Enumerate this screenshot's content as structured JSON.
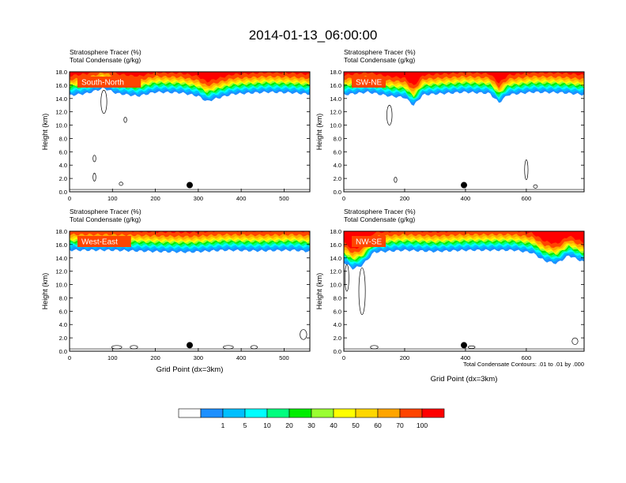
{
  "figure": {
    "title": "2014-01-13_06:00:00",
    "footnote": "Total Condensate Contours: .01 to .01 by .000"
  },
  "colorbar": {
    "colors": [
      "#ffffff",
      "#1e90ff",
      "#00bfff",
      "#00ffff",
      "#00ff7f",
      "#00ee00",
      "#9aff32",
      "#ffff00",
      "#ffd700",
      "#ffa500",
      "#ff4500",
      "#ff0000"
    ],
    "labels": [
      "1",
      "5",
      "10",
      "20",
      "30",
      "40",
      "50",
      "60",
      "70",
      "100"
    ]
  },
  "chart_data": [
    {
      "type": "heatmap",
      "label": "South-North",
      "title_lines": [
        "Stratosphere Tracer   (%)",
        "Total Condensate   (g/kg)"
      ],
      "ylabel": "Height (km)",
      "xlabel": "",
      "xlim": [
        0,
        560
      ],
      "ylim": [
        0,
        18
      ],
      "xticks": [
        0,
        100,
        200,
        300,
        400,
        500
      ],
      "yticks": [
        "0.0",
        "2.0",
        "4.0",
        "6.0",
        "8.0",
        "10.0",
        "12.0",
        "14.0",
        "16.0",
        "18.0"
      ],
      "tropopause_km": [
        [
          0,
          14.1
        ],
        [
          40,
          14.4
        ],
        [
          80,
          15.2
        ],
        [
          110,
          14.4
        ],
        [
          160,
          14.0
        ],
        [
          200,
          14.6
        ],
        [
          260,
          14.5
        ],
        [
          300,
          14.0
        ],
        [
          320,
          13.2
        ],
        [
          340,
          13.6
        ],
        [
          380,
          14.3
        ],
        [
          460,
          14.6
        ],
        [
          520,
          14.5
        ],
        [
          560,
          14.3
        ]
      ],
      "marker": [
        280,
        1.0
      ],
      "condensate_contours": [
        [
          80,
          13.5,
          10,
          3.5
        ],
        [
          130,
          10.8,
          3,
          0.8
        ],
        [
          58,
          5.0,
          3,
          1.0
        ],
        [
          58,
          2.2,
          3,
          1.2
        ],
        [
          120,
          1.2,
          5,
          0.5
        ]
      ]
    },
    {
      "type": "heatmap",
      "label": "SW-NE",
      "title_lines": [
        "Stratosphere Tracer   (%)",
        "Total Condensate   (g/kg)"
      ],
      "ylabel": "Height (km)",
      "xlabel": "",
      "xlim": [
        0,
        790
      ],
      "ylim": [
        0,
        18
      ],
      "xticks": [
        0,
        200,
        400,
        600
      ],
      "yticks": [
        "0.0",
        "2.0",
        "4.0",
        "6.0",
        "8.0",
        "10.0",
        "12.0",
        "14.0",
        "16.0",
        "18.0"
      ],
      "tropopause_km": [
        [
          0,
          14.2
        ],
        [
          80,
          14.6
        ],
        [
          150,
          14.0
        ],
        [
          200,
          13.8
        ],
        [
          230,
          12.6
        ],
        [
          260,
          14.2
        ],
        [
          400,
          14.6
        ],
        [
          480,
          14.4
        ],
        [
          510,
          13.0
        ],
        [
          540,
          14.2
        ],
        [
          620,
          14.6
        ],
        [
          720,
          14.5
        ],
        [
          790,
          14.2
        ]
      ],
      "marker": [
        395,
        1.0
      ],
      "condensate_contours": [
        [
          150,
          11.5,
          12,
          3.0
        ],
        [
          170,
          1.8,
          4,
          0.8
        ],
        [
          600,
          3.3,
          6,
          3.0
        ],
        [
          630,
          0.8,
          8,
          0.5
        ]
      ]
    },
    {
      "type": "heatmap",
      "label": "West-East",
      "title_lines": [
        "Stratosphere Tracer   (%)",
        "Total Condensate   (g/kg)"
      ],
      "ylabel": "Height (km)",
      "xlabel": "Grid Point (dx=3km)",
      "xlim": [
        0,
        560
      ],
      "ylim": [
        0,
        18
      ],
      "xticks": [
        0,
        100,
        200,
        300,
        400,
        500
      ],
      "yticks": [
        "0.0",
        "2.0",
        "4.0",
        "6.0",
        "8.0",
        "10.0",
        "12.0",
        "14.0",
        "16.0",
        "18.0"
      ],
      "tropopause_km": [
        [
          0,
          14.8
        ],
        [
          100,
          14.8
        ],
        [
          200,
          14.6
        ],
        [
          280,
          14.5
        ],
        [
          360,
          14.8
        ],
        [
          440,
          14.7
        ],
        [
          520,
          14.8
        ],
        [
          560,
          14.6
        ]
      ],
      "marker": [
        280,
        0.9
      ],
      "condensate_contours": [
        [
          110,
          0.6,
          20,
          0.5
        ],
        [
          150,
          0.6,
          14,
          0.5
        ],
        [
          370,
          0.6,
          20,
          0.5
        ],
        [
          430,
          0.6,
          12,
          0.5
        ],
        [
          545,
          2.5,
          12,
          1.5
        ]
      ]
    },
    {
      "type": "heatmap",
      "label": "NW-SE",
      "title_lines": [
        "Stratosphere Tracer   (%)",
        "Total Condensate   (g/kg)"
      ],
      "ylabel": "Height (km)",
      "xlabel": "Grid Point (dx=3km)",
      "xlim": [
        0,
        790
      ],
      "ylim": [
        0,
        18
      ],
      "xticks": [
        0,
        200,
        400,
        600
      ],
      "yticks": [
        "0.0",
        "2.0",
        "4.0",
        "6.0",
        "8.0",
        "10.0",
        "12.0",
        "14.0",
        "16.0",
        "18.0"
      ],
      "tropopause_km": [
        [
          0,
          13.0
        ],
        [
          30,
          12.0
        ],
        [
          60,
          12.5
        ],
        [
          100,
          14.5
        ],
        [
          200,
          14.8
        ],
        [
          300,
          14.6
        ],
        [
          400,
          14.8
        ],
        [
          560,
          14.8
        ],
        [
          620,
          14.4
        ],
        [
          660,
          13.2
        ],
        [
          700,
          12.8
        ],
        [
          740,
          14.0
        ],
        [
          790,
          13.0
        ]
      ],
      "marker": [
        395,
        0.9
      ],
      "condensate_contours": [
        [
          60,
          9.0,
          16,
          7.0
        ],
        [
          10,
          11.0,
          8,
          4.0
        ],
        [
          100,
          0.6,
          20,
          0.5
        ],
        [
          420,
          0.6,
          18,
          0.4
        ],
        [
          760,
          1.5,
          14,
          1.0
        ]
      ]
    }
  ]
}
